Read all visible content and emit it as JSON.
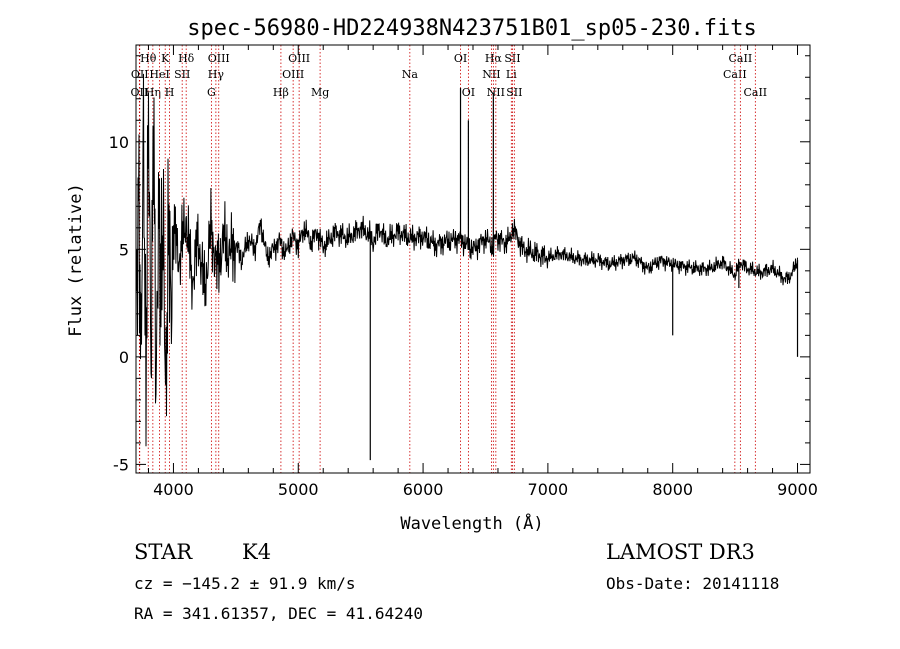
{
  "chart_data": {
    "type": "line",
    "title": "spec-56980-HD224938N423751B01_sp05-230.fits",
    "xlabel": "Wavelength (Å)",
    "ylabel": "Flux (relative)",
    "xlim": [
      3700,
      9100
    ],
    "ylim": [
      -5.4,
      14.5
    ],
    "x_ticks": [
      4000,
      5000,
      6000,
      7000,
      8000,
      9000
    ],
    "x_tick_labels": [
      "4000",
      "5000",
      "6000",
      "7000",
      "8000",
      "9000"
    ],
    "y_ticks": [
      -5,
      0,
      5,
      10
    ],
    "y_tick_labels": [
      "-5",
      "0",
      "5",
      "10"
    ],
    "series": [
      {
        "name": "spectrum",
        "x": [
          3700,
          3720,
          3740,
          3760,
          3780,
          3800,
          3820,
          3840,
          3860,
          3880,
          3900,
          3920,
          3940,
          3960,
          3980,
          4000,
          4050,
          4100,
          4150,
          4200,
          4250,
          4300,
          4350,
          4400,
          4450,
          4500,
          4550,
          4600,
          4650,
          4700,
          4750,
          4800,
          4850,
          4900,
          4950,
          5000,
          5050,
          5100,
          5150,
          5200,
          5300,
          5400,
          5500,
          5580,
          5600,
          5650,
          5700,
          5800,
          5900,
          6000,
          6100,
          6200,
          6300,
          6350,
          6400,
          6500,
          6550,
          6563,
          6580,
          6650,
          6700,
          6720,
          6800,
          6900,
          7000,
          7100,
          7200,
          7300,
          7400,
          7500,
          7600,
          7700,
          7800,
          7900,
          8000,
          8100,
          8200,
          8300,
          8400,
          8500,
          8540,
          8600,
          8700,
          8800,
          8900,
          8950,
          9000
        ],
        "y": [
          2.0,
          9.0,
          -2.0,
          12.0,
          -1.5,
          10.5,
          1.0,
          11.0,
          -2.6,
          8.5,
          2.0,
          6.0,
          -1.0,
          5.0,
          3.0,
          6.0,
          4.5,
          6.5,
          3.5,
          5.5,
          3.0,
          6.0,
          4.0,
          5.5,
          4.8,
          5.2,
          4.5,
          5.5,
          5.0,
          6.2,
          4.6,
          5.0,
          5.4,
          4.8,
          5.6,
          5.2,
          6.0,
          5.3,
          5.8,
          5.1,
          5.8,
          5.5,
          6.0,
          5.6,
          5.3,
          6.0,
          5.4,
          5.8,
          5.5,
          5.6,
          5.2,
          5.4,
          5.5,
          5.2,
          5.0,
          5.5,
          5.2,
          5.0,
          5.6,
          5.3,
          5.5,
          6.0,
          5.0,
          4.8,
          4.6,
          4.8,
          4.6,
          4.5,
          4.5,
          4.3,
          4.5,
          4.6,
          4.1,
          4.5,
          4.3,
          4.2,
          4.1,
          4.1,
          4.4,
          3.8,
          4.4,
          4.1,
          3.9,
          4.1,
          3.6,
          3.8,
          4.5
        ]
      }
    ],
    "spikes": [
      {
        "x": 5577,
        "to": -4.8
      },
      {
        "x": 6300,
        "to": 12.5
      },
      {
        "x": 6363,
        "to": 11.0
      },
      {
        "x": 6563,
        "to": 12.3
      },
      {
        "x": 8000,
        "to": 1.0
      },
      {
        "x": 8530,
        "to": 3.2
      },
      {
        "x": 9000,
        "to": 0.0
      }
    ],
    "line_markers": [
      {
        "label": "OII",
        "wavelength": 3727,
        "row": 3
      },
      {
        "label": "OII",
        "wavelength": 3730,
        "row": 2
      },
      {
        "label": "Hθ",
        "wavelength": 3798,
        "row": 1
      },
      {
        "label": "Hη",
        "wavelength": 3835,
        "row": 3
      },
      {
        "label": "HeI",
        "wavelength": 3889,
        "row": 2
      },
      {
        "label": "K",
        "wavelength": 3934,
        "row": 1
      },
      {
        "label": "H",
        "wavelength": 3969,
        "row": 3
      },
      {
        "label": "SII",
        "wavelength": 4070,
        "row": 2
      },
      {
        "label": "Hδ",
        "wavelength": 4102,
        "row": 1
      },
      {
        "label": "G",
        "wavelength": 4304,
        "row": 3
      },
      {
        "label": "Hγ",
        "wavelength": 4340,
        "row": 2
      },
      {
        "label": "OIII",
        "wavelength": 4363,
        "row": 1
      },
      {
        "label": "Hβ",
        "wavelength": 4861,
        "row": 3
      },
      {
        "label": "OIII",
        "wavelength": 4959,
        "row": 2
      },
      {
        "label": "OIII",
        "wavelength": 5007,
        "row": 1
      },
      {
        "label": "Mg",
        "wavelength": 5175,
        "row": 3
      },
      {
        "label": "Na",
        "wavelength": 5894,
        "row": 2
      },
      {
        "label": "OI",
        "wavelength": 6300,
        "row": 1
      },
      {
        "label": "OI",
        "wavelength": 6363,
        "row": 3
      },
      {
        "label": "NII",
        "wavelength": 6548,
        "row": 2
      },
      {
        "label": "Hα",
        "wavelength": 6563,
        "row": 1
      },
      {
        "label": "NII",
        "wavelength": 6583,
        "row": 3
      },
      {
        "label": "Li",
        "wavelength": 6707,
        "row": 2
      },
      {
        "label": "SII",
        "wavelength": 6716,
        "row": 1
      },
      {
        "label": "SII",
        "wavelength": 6731,
        "row": 3
      },
      {
        "label": "CaII",
        "wavelength": 8498,
        "row": 2
      },
      {
        "label": "CaII",
        "wavelength": 8542,
        "row": 1
      },
      {
        "label": "CaII",
        "wavelength": 8662,
        "row": 3
      }
    ]
  },
  "info": {
    "class": "STAR",
    "subclass": "K4",
    "cz": "cz = −145.2 ± 91.9 km/s",
    "radec": "RA = 341.61357, DEC =  41.64240",
    "survey": "LAMOST DR3",
    "obs_date": "Obs-Date: 20141118"
  }
}
